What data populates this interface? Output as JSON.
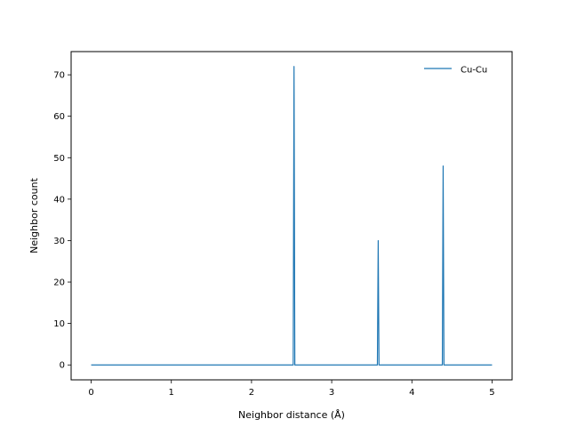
{
  "chart_data": {
    "type": "line",
    "title": "",
    "xlabel": "Neighbor distance (Å)",
    "ylabel": "Neighbor count",
    "xlim": [
      -0.25,
      5.25
    ],
    "ylim": [
      -3.6,
      75.6
    ],
    "xticks": [
      0,
      1,
      2,
      3,
      4,
      5
    ],
    "xtick_labels": [
      "0",
      "1",
      "2",
      "3",
      "4",
      "5"
    ],
    "yticks": [
      0,
      10,
      20,
      30,
      40,
      50,
      60,
      70
    ],
    "ytick_labels": [
      "0",
      "10",
      "20",
      "30",
      "40",
      "50",
      "60",
      "70"
    ],
    "grid": false,
    "legend_position": "upper-right",
    "series": [
      {
        "name": "Cu-Cu",
        "color": "#1f77b4",
        "x": [
          0,
          2.52,
          2.53,
          2.54,
          3.57,
          3.58,
          3.59,
          4.38,
          4.39,
          4.4,
          5.0
        ],
        "y": [
          0,
          0,
          72,
          0,
          0,
          30,
          0,
          0,
          48,
          0,
          0
        ]
      }
    ]
  }
}
